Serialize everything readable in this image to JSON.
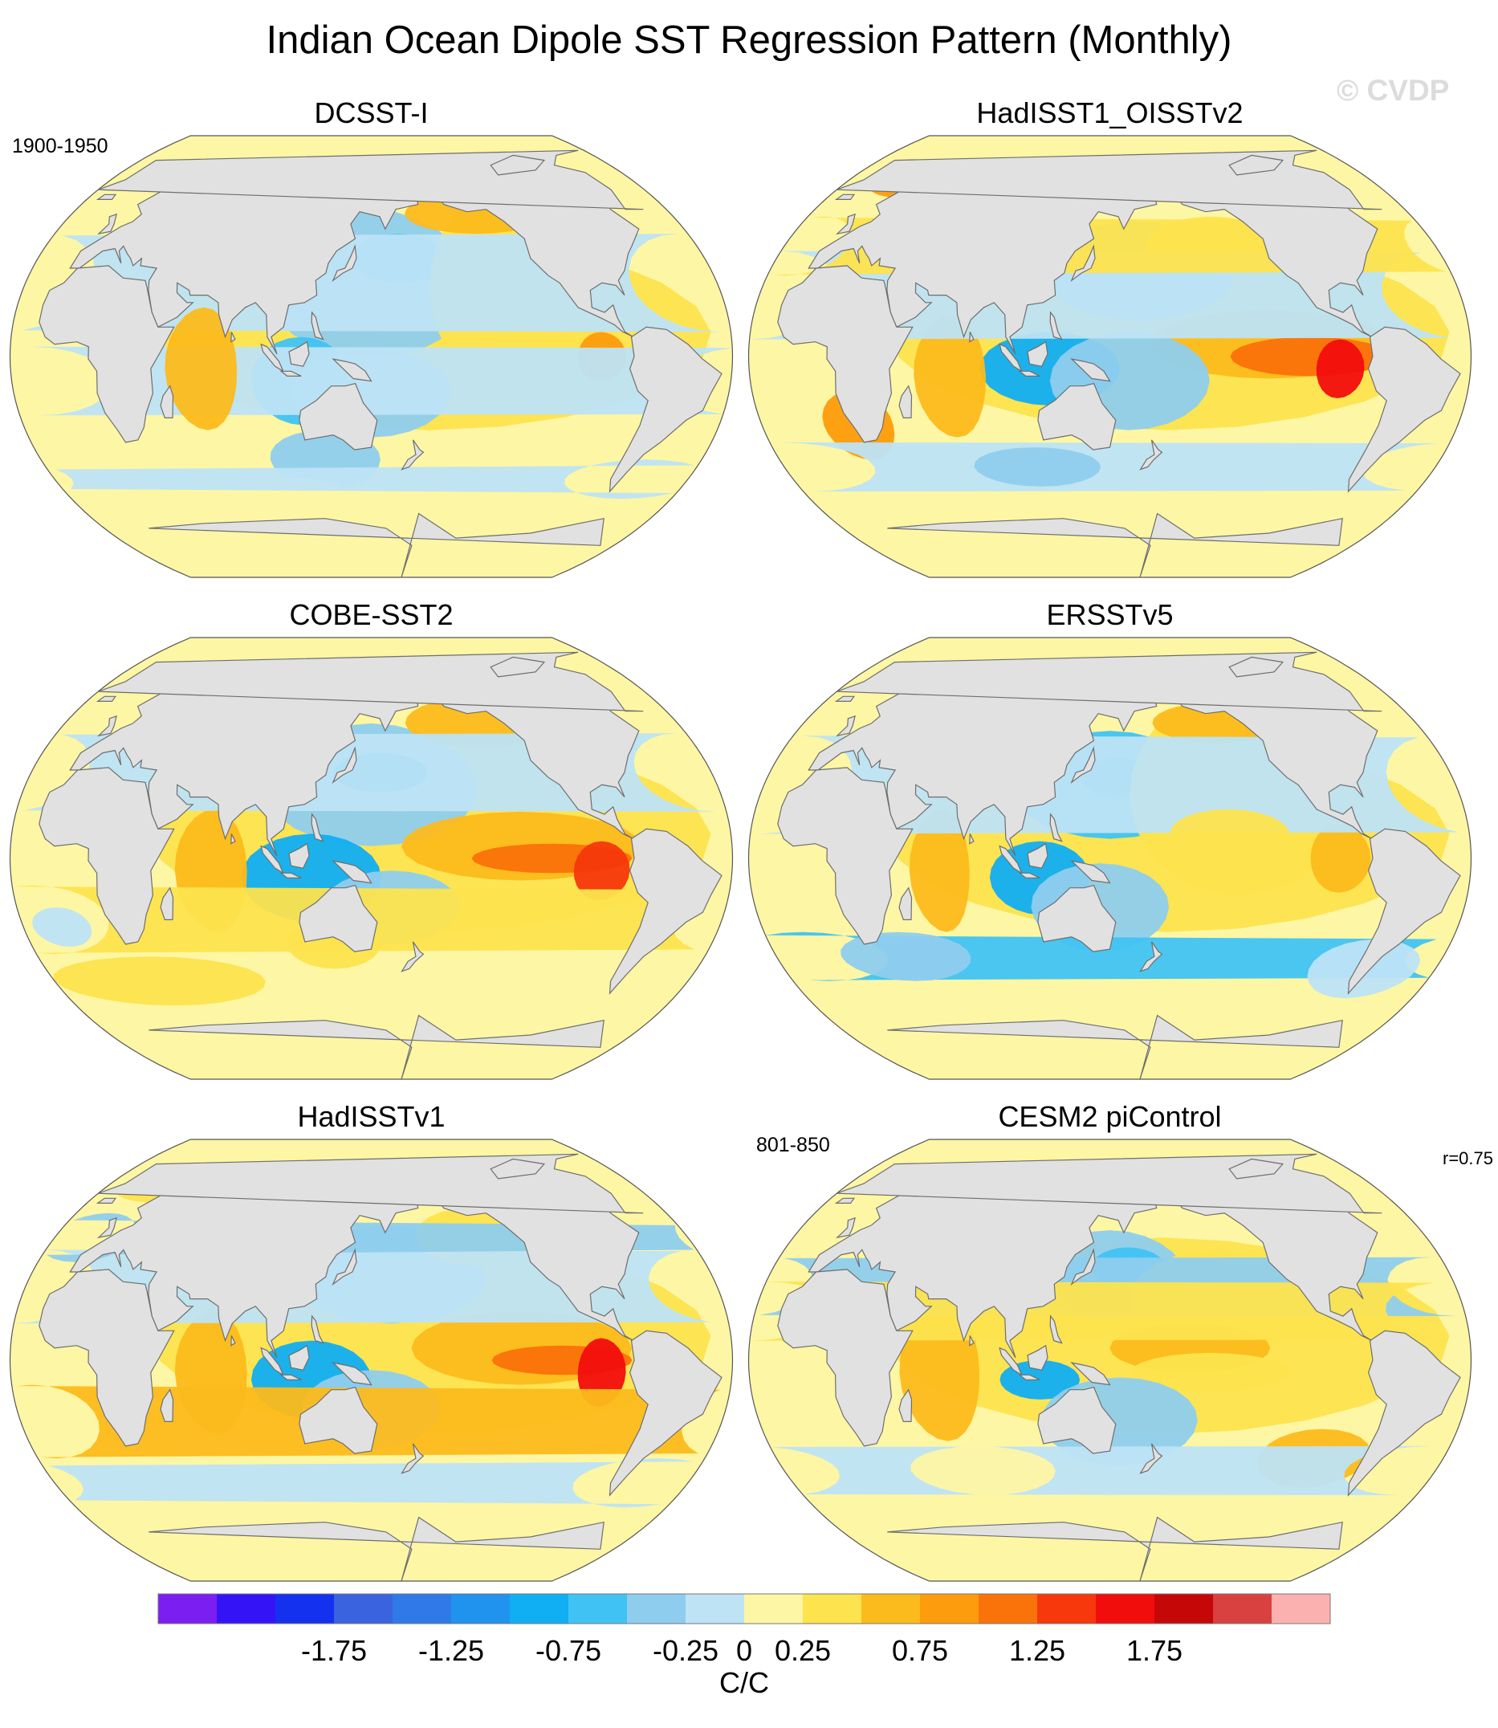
{
  "title": "Indian Ocean Dipole SST Regression Pattern (Monthly)",
  "watermark": "© CVDP",
  "panels": [
    {
      "title": "DCSST-I",
      "left_label": "1900-1950",
      "right_label": "",
      "pattern": "dcsst"
    },
    {
      "title": "HadISST1_OISSTv2",
      "left_label": "",
      "right_label": "",
      "pattern": "hadoi"
    },
    {
      "title": "COBE-SST2",
      "left_label": "",
      "right_label": "",
      "pattern": "cobe"
    },
    {
      "title": "ERSSTv5",
      "left_label": "",
      "right_label": "",
      "pattern": "ersst"
    },
    {
      "title": "HadISSTv1",
      "left_label": "",
      "right_label": "",
      "pattern": "hadv1"
    },
    {
      "title": "CESM2 piControl",
      "left_label": "801-850",
      "right_label": "r=0.75",
      "pattern": "cesm"
    }
  ],
  "colorbar": {
    "unit": "C/C",
    "colors": [
      "#7b1ef2",
      "#3414f7",
      "#1431ef",
      "#3a63e0",
      "#2f7ae8",
      "#2093ef",
      "#10aef2",
      "#40c3f4",
      "#8fcdee",
      "#bde3f5",
      "#fdf6a4",
      "#fde34e",
      "#fcbb1c",
      "#fd9c0c",
      "#fa720a",
      "#f6380c",
      "#f20d0d",
      "#c60707",
      "#d94040",
      "#fcb1b1"
    ],
    "levels": [
      -2.25,
      -2,
      -1.75,
      -1.5,
      -1.25,
      -1,
      -0.75,
      -0.5,
      -0.25,
      0,
      0.25,
      0.5,
      0.75,
      1,
      1.25,
      1.5,
      1.75,
      2,
      2.25
    ],
    "tick_labels": [
      "-1.75",
      "-1.25",
      "-0.75",
      "-0.25",
      "0",
      "0.25",
      "0.75",
      "1.25",
      "1.75"
    ]
  },
  "land_color": "#e1e1e1",
  "coast_color": "#6e6e6e"
}
